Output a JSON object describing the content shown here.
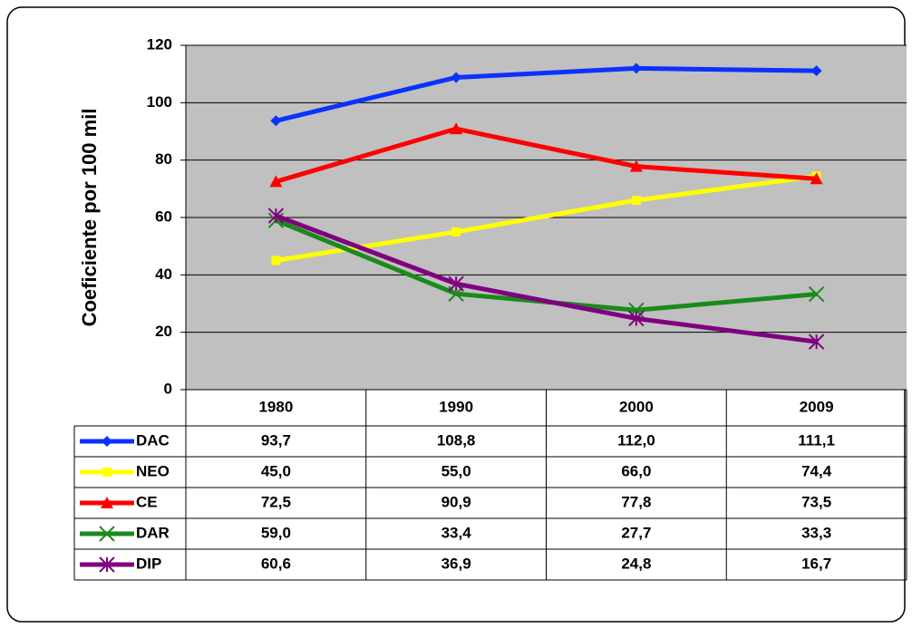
{
  "chart_data": {
    "type": "line",
    "y_label": "Coeficiente por 100 mil",
    "categories": [
      "1980",
      "1990",
      "2000",
      "2009"
    ],
    "series": [
      {
        "name": "DAC",
        "color": "#0a32ff",
        "marker": "diamond",
        "values": [
          93.7,
          108.8,
          112.0,
          111.1
        ],
        "value_labels": [
          "93,7",
          "108,8",
          "112,0",
          "111,1"
        ]
      },
      {
        "name": "NEO",
        "color": "#ffff00",
        "marker": "square",
        "values": [
          45.0,
          55.0,
          66.0,
          74.4
        ],
        "value_labels": [
          "45,0",
          "55,0",
          "66,0",
          "74,4"
        ]
      },
      {
        "name": "CE",
        "color": "#ff0000",
        "marker": "triangle",
        "values": [
          72.5,
          90.9,
          77.8,
          73.5
        ],
        "value_labels": [
          "72,5",
          "90,9",
          "77,8",
          "73,5"
        ]
      },
      {
        "name": "DAR",
        "color": "#1a8a1a",
        "marker": "x",
        "values": [
          59.0,
          33.4,
          27.7,
          33.3
        ],
        "value_labels": [
          "59,0",
          "33,4",
          "27,7",
          "33,3"
        ]
      },
      {
        "name": "DIP",
        "color": "#800080",
        "marker": "star",
        "values": [
          60.6,
          36.9,
          24.8,
          16.7
        ],
        "value_labels": [
          "60,6",
          "36,9",
          "24,8",
          "16,7"
        ]
      }
    ],
    "ylim": [
      0,
      120
    ],
    "yticks": [
      0,
      20,
      40,
      60,
      80,
      100,
      120
    ],
    "grid": true
  }
}
